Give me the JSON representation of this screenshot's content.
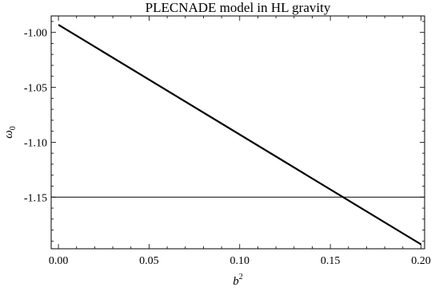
{
  "chart_data": {
    "type": "line",
    "title": "PLECNADE model in HL gravity",
    "xlabel": "b",
    "xlabel_sup": "2",
    "ylabel": "ω",
    "ylabel_sub": "0",
    "xlim": [
      -0.004,
      0.202
    ],
    "ylim": [
      -1.197,
      -0.985
    ],
    "xticks": [
      0.0,
      0.05,
      0.1,
      0.15,
      0.2
    ],
    "xtick_labels": [
      "0.00",
      "0.05",
      "0.10",
      "0.15",
      "0.20"
    ],
    "yticks": [
      -1.0,
      -1.05,
      -1.1,
      -1.15
    ],
    "ytick_labels": [
      "-1.00",
      "-1.05",
      "-1.10",
      "-1.15"
    ],
    "series": [
      {
        "x": [
          0.0,
          0.2
        ],
        "y": [
          -0.993,
          -1.193
        ]
      }
    ],
    "hlines": [
      {
        "y": -1.15
      }
    ],
    "grid": false,
    "legend": "none"
  },
  "colors": {
    "line": "#000000",
    "frame": "#000000"
  }
}
